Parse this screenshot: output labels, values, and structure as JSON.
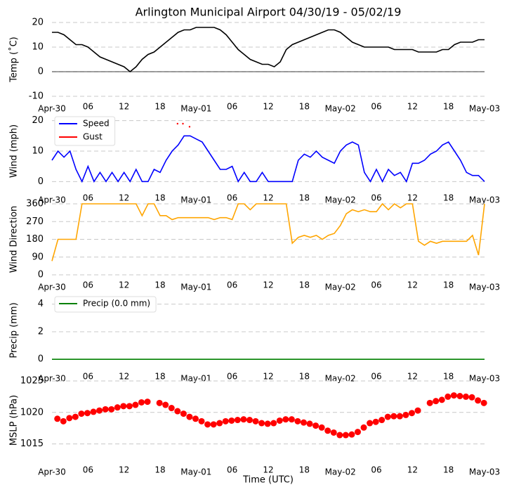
{
  "chart_data": [
    {
      "type": "line",
      "title": "Arlington Municipal Airport 04/30/19 - 05/02/19",
      "ylabel": "Temp (˚C)",
      "x": [
        0,
        1,
        2,
        3,
        4,
        5,
        6,
        7,
        8,
        9,
        10,
        11,
        12,
        13,
        14,
        15,
        16,
        17,
        18,
        19,
        20,
        21,
        22,
        23,
        24,
        25,
        26,
        27,
        28,
        29,
        30,
        31,
        32,
        33,
        34,
        35,
        36,
        37,
        38,
        39,
        40,
        41,
        42,
        43,
        44,
        45,
        46,
        47,
        48,
        49,
        50,
        51,
        52,
        53,
        54,
        55,
        56,
        57,
        58,
        59,
        60,
        61,
        62,
        63,
        64,
        65,
        66,
        67,
        68,
        69,
        70,
        71,
        72
      ],
      "series": [
        {
          "color": "#000000",
          "values": [
            16,
            16,
            15,
            13,
            11,
            11,
            10,
            8,
            6,
            5,
            4,
            3,
            2,
            0,
            2,
            5,
            7,
            8,
            10,
            12,
            14,
            16,
            17,
            17,
            18,
            18,
            18,
            18,
            17,
            15,
            12,
            9,
            7,
            5,
            4,
            3,
            3,
            2,
            4,
            9,
            11,
            12,
            13,
            14,
            15,
            16,
            17,
            17,
            16,
            14,
            12,
            11,
            10,
            10,
            10,
            10,
            10,
            9,
            9,
            9,
            9,
            8,
            8,
            8,
            8,
            9,
            9,
            11,
            12,
            12,
            12,
            13,
            13
          ]
        }
      ],
      "xlim": [
        0,
        72
      ],
      "xticks": [
        {
          "value": 0,
          "label": "Apr-30"
        },
        {
          "value": 6,
          "label": "06"
        },
        {
          "value": 12,
          "label": "12"
        },
        {
          "value": 18,
          "label": "18"
        },
        {
          "value": 24,
          "label": "May-01"
        },
        {
          "value": 30,
          "label": "06"
        },
        {
          "value": 36,
          "label": "12"
        },
        {
          "value": 42,
          "label": "18"
        },
        {
          "value": 48,
          "label": "May-02"
        },
        {
          "value": 54,
          "label": "06"
        },
        {
          "value": 60,
          "label": "12"
        },
        {
          "value": 66,
          "label": "18"
        },
        {
          "value": 72,
          "label": "May-03"
        }
      ],
      "ylim": [
        -10,
        20
      ],
      "yticks": [
        -10,
        0,
        10,
        20
      ],
      "grid": true,
      "zero_line": true
    },
    {
      "type": "line",
      "ylabel": "Wind (mph)",
      "legend": "upper left",
      "x": [
        0,
        1,
        2,
        3,
        4,
        5,
        6,
        7,
        8,
        9,
        10,
        11,
        12,
        13,
        14,
        15,
        16,
        17,
        18,
        19,
        20,
        21,
        22,
        23,
        24,
        25,
        26,
        27,
        28,
        29,
        30,
        31,
        32,
        33,
        34,
        35,
        36,
        37,
        38,
        39,
        40,
        41,
        42,
        43,
        44,
        45,
        46,
        47,
        48,
        49,
        50,
        51,
        52,
        53,
        54,
        55,
        56,
        57,
        58,
        59,
        60,
        61,
        62,
        63,
        64,
        65,
        66,
        67,
        68,
        69,
        70,
        71,
        72
      ],
      "series": [
        {
          "name": "Speed",
          "color": "#0000ff",
          "values": [
            7,
            10,
            8,
            10,
            4,
            0,
            5,
            0,
            3,
            0,
            3,
            0,
            3,
            0,
            4,
            0,
            0,
            4,
            3,
            7,
            10,
            12,
            15,
            15,
            14,
            13,
            10,
            7,
            4,
            4,
            5,
            0,
            3,
            0,
            0,
            3,
            0,
            0,
            0,
            0,
            0,
            7,
            9,
            8,
            10,
            8,
            7,
            6,
            10,
            12,
            13,
            12,
            3,
            0,
            4,
            0,
            4,
            2,
            3,
            0,
            6,
            6,
            7,
            9,
            10,
            12,
            13,
            10,
            7,
            3,
            2,
            2,
            0
          ]
        },
        {
          "name": "Gust",
          "color": "#ff0000",
          "markers_only": true,
          "x": [
            20.9,
            21.8,
            22.9
          ],
          "values": [
            19,
            19,
            18
          ]
        }
      ],
      "xlim": [
        0,
        72
      ],
      "xticks": [
        {
          "value": 0,
          "label": "Apr-30"
        },
        {
          "value": 6,
          "label": "06"
        },
        {
          "value": 12,
          "label": "12"
        },
        {
          "value": 18,
          "label": "18"
        },
        {
          "value": 24,
          "label": "May-01"
        },
        {
          "value": 30,
          "label": "06"
        },
        {
          "value": 36,
          "label": "12"
        },
        {
          "value": 42,
          "label": "18"
        },
        {
          "value": 48,
          "label": "May-02"
        },
        {
          "value": 54,
          "label": "06"
        },
        {
          "value": 60,
          "label": "12"
        },
        {
          "value": 66,
          "label": "18"
        },
        {
          "value": 72,
          "label": "May-03"
        }
      ],
      "ylim": [
        -2,
        22
      ],
      "yticks": [
        0,
        10,
        20
      ],
      "grid": true
    },
    {
      "type": "line",
      "ylabel": "Wind Direction",
      "x": [
        0,
        1,
        2,
        3,
        4,
        5,
        6,
        7,
        8,
        9,
        10,
        11,
        12,
        13,
        14,
        15,
        16,
        17,
        18,
        19,
        20,
        21,
        22,
        23,
        24,
        25,
        26,
        27,
        28,
        29,
        30,
        31,
        32,
        33,
        34,
        35,
        36,
        37,
        38,
        39,
        40,
        41,
        42,
        43,
        44,
        45,
        46,
        47,
        48,
        49,
        50,
        51,
        52,
        53,
        54,
        55,
        56,
        57,
        58,
        59,
        60,
        61,
        62,
        63,
        64,
        65,
        66,
        67,
        68,
        69,
        70,
        71,
        72
      ],
      "series": [
        {
          "color": "#ffa500",
          "values": [
            70,
            180,
            180,
            180,
            180,
            360,
            360,
            360,
            360,
            360,
            360,
            360,
            360,
            360,
            360,
            300,
            360,
            360,
            300,
            300,
            280,
            290,
            290,
            290,
            290,
            290,
            290,
            280,
            290,
            290,
            280,
            360,
            360,
            330,
            360,
            360,
            360,
            360,
            360,
            360,
            160,
            190,
            200,
            190,
            200,
            180,
            200,
            210,
            250,
            310,
            330,
            320,
            330,
            320,
            320,
            360,
            330,
            360,
            340,
            360,
            360,
            170,
            150,
            170,
            160,
            170,
            170,
            170,
            170,
            170,
            200,
            100,
            360
          ]
        }
      ],
      "xlim": [
        0,
        72
      ],
      "xticks": [
        {
          "value": 0,
          "label": "Apr-30"
        },
        {
          "value": 6,
          "label": "06"
        },
        {
          "value": 12,
          "label": "12"
        },
        {
          "value": 18,
          "label": "18"
        },
        {
          "value": 24,
          "label": "May-01"
        },
        {
          "value": 30,
          "label": "06"
        },
        {
          "value": 36,
          "label": "12"
        },
        {
          "value": 42,
          "label": "18"
        },
        {
          "value": 48,
          "label": "May-02"
        },
        {
          "value": 54,
          "label": "06"
        },
        {
          "value": 60,
          "label": "12"
        },
        {
          "value": 66,
          "label": "18"
        },
        {
          "value": 72,
          "label": "May-03"
        }
      ],
      "ylim": [
        0,
        360
      ],
      "yticks": [
        0,
        90,
        180,
        270,
        360
      ],
      "grid": true
    },
    {
      "type": "line",
      "ylabel": "Precip (mm)",
      "legend": "upper left",
      "x": [
        0,
        1,
        2,
        3,
        4,
        5,
        6,
        7,
        8,
        9,
        10,
        11,
        12,
        13,
        14,
        15,
        16,
        17,
        18,
        19,
        20,
        21,
        22,
        23,
        24,
        25,
        26,
        27,
        28,
        29,
        30,
        31,
        32,
        33,
        34,
        35,
        36,
        37,
        38,
        39,
        40,
        41,
        42,
        43,
        44,
        45,
        46,
        47,
        48,
        49,
        50,
        51,
        52,
        53,
        54,
        55,
        56,
        57,
        58,
        59,
        60,
        61,
        62,
        63,
        64,
        65,
        66,
        67,
        68,
        69,
        70,
        71,
        72
      ],
      "series": [
        {
          "name": "Precip (0.0 mm)",
          "color": "#008000",
          "values": [
            0,
            0,
            0,
            0,
            0,
            0,
            0,
            0,
            0,
            0,
            0,
            0,
            0,
            0,
            0,
            0,
            0,
            0,
            0,
            0,
            0,
            0,
            0,
            0,
            0,
            0,
            0,
            0,
            0,
            0,
            0,
            0,
            0,
            0,
            0,
            0,
            0,
            0,
            0,
            0,
            0,
            0,
            0,
            0,
            0,
            0,
            0,
            0,
            0,
            0,
            0,
            0,
            0,
            0,
            0,
            0,
            0,
            0,
            0,
            0,
            0,
            0,
            0,
            0,
            0,
            0,
            0,
            0,
            0,
            0,
            0,
            0,
            0
          ]
        }
      ],
      "xlim": [
        0,
        72
      ],
      "xticks": [
        {
          "value": 0,
          "label": "Apr-30"
        },
        {
          "value": 6,
          "label": "06"
        },
        {
          "value": 12,
          "label": "12"
        },
        {
          "value": 18,
          "label": "18"
        },
        {
          "value": 24,
          "label": "May-01"
        },
        {
          "value": 30,
          "label": "06"
        },
        {
          "value": 36,
          "label": "12"
        },
        {
          "value": 42,
          "label": "18"
        },
        {
          "value": 48,
          "label": "May-02"
        },
        {
          "value": 54,
          "label": "06"
        },
        {
          "value": 60,
          "label": "12"
        },
        {
          "value": 66,
          "label": "18"
        },
        {
          "value": 72,
          "label": "May-03"
        }
      ],
      "ylim": [
        -0.5,
        4.7
      ],
      "yticks": [
        0,
        2,
        4
      ],
      "grid": true
    },
    {
      "type": "scatter",
      "ylabel": "MSLP (hPa)",
      "xlabel": "Time (UTC)",
      "x": [
        0.9,
        1.9,
        2.9,
        3.9,
        4.9,
        5.9,
        6.9,
        7.9,
        8.9,
        9.9,
        10.9,
        11.9,
        12.9,
        13.9,
        14.9,
        15.9,
        16.9,
        17.9,
        18.9,
        19.9,
        20.9,
        21.9,
        22.9,
        23.9,
        24.9,
        25.9,
        26.9,
        27.9,
        28.9,
        29.9,
        30.9,
        31.9,
        32.9,
        33.9,
        34.9,
        35.9,
        36.9,
        37.9,
        38.9,
        39.9,
        40.9,
        41.9,
        42.9,
        43.9,
        44.9,
        45.9,
        46.9,
        47.9,
        48.9,
        49.9,
        50.9,
        51.9,
        52.9,
        53.9,
        54.9,
        55.9,
        56.9,
        57.9,
        58.9,
        59.9,
        60.9,
        61.9,
        62.9,
        63.9,
        64.9,
        65.9,
        66.9,
        67.9,
        68.9,
        69.9,
        70.9,
        71.9
      ],
      "series": [
        {
          "color": "#ff0000",
          "values": [
            1019.0,
            1018.6,
            1019.1,
            1019.3,
            1019.8,
            1019.9,
            1020.1,
            1020.3,
            1020.5,
            1020.5,
            1020.8,
            1021.0,
            1021.0,
            1021.2,
            1021.6,
            1021.7,
            null,
            1021.5,
            1021.2,
            1020.7,
            1020.2,
            1019.8,
            1019.3,
            1019.0,
            1018.6,
            1018.1,
            1018.1,
            1018.3,
            1018.6,
            1018.7,
            1018.8,
            1018.9,
            1018.8,
            1018.6,
            1018.3,
            1018.2,
            1018.3,
            1018.7,
            1018.9,
            1018.9,
            1018.6,
            1018.4,
            1018.2,
            1017.9,
            1017.6,
            1017.1,
            1016.8,
            1016.4,
            1016.4,
            1016.5,
            1016.9,
            1017.6,
            1018.3,
            1018.5,
            1018.8,
            1019.3,
            1019.4,
            1019.4,
            1019.6,
            1019.9,
            1020.3,
            null,
            1021.5,
            1021.8,
            1022.0,
            1022.5,
            1022.7,
            1022.6,
            1022.5,
            1022.4,
            1021.9,
            1021.5
          ]
        }
      ],
      "xlim": [
        0,
        72
      ],
      "xticks": [
        {
          "value": 0,
          "label": "Apr-30"
        },
        {
          "value": 6,
          "label": "06"
        },
        {
          "value": 12,
          "label": "12"
        },
        {
          "value": 18,
          "label": "18"
        },
        {
          "value": 24,
          "label": "May-01"
        },
        {
          "value": 30,
          "label": "06"
        },
        {
          "value": 36,
          "label": "12"
        },
        {
          "value": 42,
          "label": "18"
        },
        {
          "value": 48,
          "label": "May-02"
        },
        {
          "value": 54,
          "label": "06"
        },
        {
          "value": 60,
          "label": "12"
        },
        {
          "value": 66,
          "label": "18"
        },
        {
          "value": 72,
          "label": "May-03"
        }
      ],
      "ylim": [
        1012.5,
        1025
      ],
      "yticks": [
        1015,
        1020,
        1025
      ],
      "grid": true
    }
  ]
}
